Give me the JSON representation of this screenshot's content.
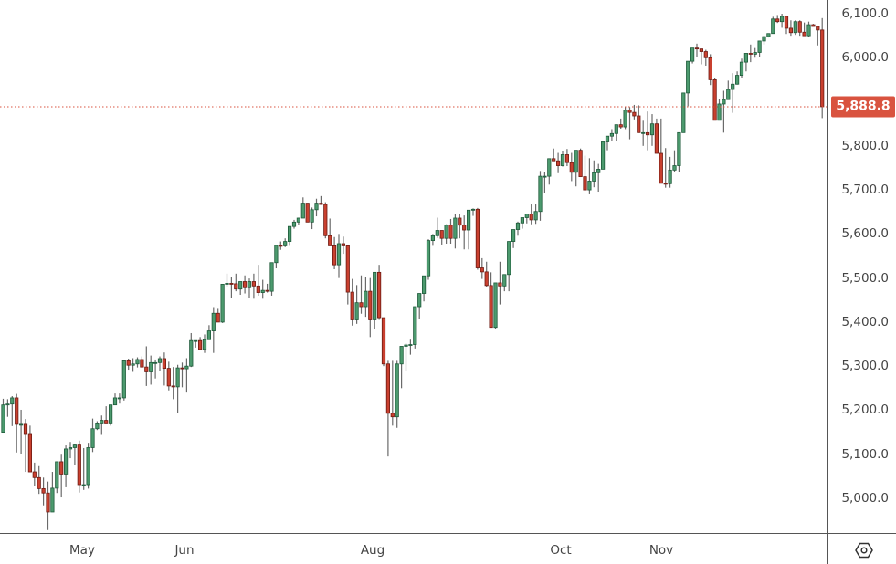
{
  "chart_data": {
    "type": "candlestick",
    "title": "",
    "xlabel": "",
    "ylabel": "",
    "ylim": [
      4925,
      6130
    ],
    "grid": false,
    "legend": "none",
    "last_price": 5888.8,
    "last_price_label": "5,888.8",
    "y_ticks": [
      {
        "value": 6100,
        "label": "6,100.0"
      },
      {
        "value": 6000,
        "label": "6,000.0"
      },
      {
        "value": 5800,
        "label": "5,800.0"
      },
      {
        "value": 5700,
        "label": "5,700.0"
      },
      {
        "value": 5600,
        "label": "5,600.0"
      },
      {
        "value": 5500,
        "label": "5,500.0"
      },
      {
        "value": 5400,
        "label": "5,400.0"
      },
      {
        "value": 5300,
        "label": "5,300.0"
      },
      {
        "value": 5200,
        "label": "5,200.0"
      },
      {
        "value": 5100,
        "label": "5,100.0"
      },
      {
        "value": 5000,
        "label": "5,000.0"
      }
    ],
    "x_ticks": [
      {
        "label": "May",
        "x": 90
      },
      {
        "label": "Jun",
        "x": 202
      },
      {
        "label": "Aug",
        "x": 408
      },
      {
        "label": "Oct",
        "x": 614
      },
      {
        "label": "Nov",
        "x": 724
      }
    ],
    "colors": {
      "up_fill": "#4c9a6e",
      "up_border": "#1e5a3a",
      "down_fill": "#c9402f",
      "down_border": "#6e1a12",
      "wick": "#6a6a6a",
      "last_price_line": "#d9533f",
      "badge": "#d9533f"
    },
    "candle_x0": 3.5,
    "candle_step": 4.9,
    "candles": [
      [
        5150,
        5226,
        5148,
        5212
      ],
      [
        5212,
        5225,
        5185,
        5214
      ],
      [
        5214,
        5232,
        5164,
        5228
      ],
      [
        5228,
        5237,
        5104,
        5168
      ],
      [
        5168,
        5201,
        5100,
        5168
      ],
      [
        5168,
        5180,
        5060,
        5145
      ],
      [
        5145,
        5165,
        5072,
        5060
      ],
      [
        5060,
        5081,
        5028,
        5047
      ],
      [
        5047,
        5073,
        5010,
        5022
      ],
      [
        5022,
        5047,
        4984,
        5012
      ],
      [
        5012,
        5038,
        4928,
        4969
      ],
      [
        4969,
        5060,
        4969,
        5023
      ],
      [
        5023,
        5078,
        5012,
        5083
      ],
      [
        5083,
        5099,
        5002,
        5055
      ],
      [
        5055,
        5120,
        5025,
        5112
      ],
      [
        5112,
        5128,
        5091,
        5115
      ],
      [
        5115,
        5123,
        5076,
        5121
      ],
      [
        5121,
        5131,
        5013,
        5031
      ],
      [
        5031,
        5114,
        5019,
        5031
      ],
      [
        5031,
        5126,
        5022,
        5115
      ],
      [
        5115,
        5181,
        5105,
        5158
      ],
      [
        5158,
        5175,
        5155,
        5169
      ],
      [
        5169,
        5188,
        5144,
        5177
      ],
      [
        5177,
        5209,
        5182,
        5169
      ],
      [
        5169,
        5202,
        5165,
        5212
      ],
      [
        5212,
        5238,
        5212,
        5228
      ],
      [
        5228,
        5238,
        5215,
        5228
      ],
      [
        5228,
        5250,
        5222,
        5312
      ],
      [
        5312,
        5317,
        5292,
        5302
      ],
      [
        5302,
        5318,
        5287,
        5305
      ],
      [
        5305,
        5320,
        5297,
        5315
      ],
      [
        5315,
        5322,
        5297,
        5298
      ],
      [
        5298,
        5345,
        5255,
        5287
      ],
      [
        5287,
        5324,
        5258,
        5308
      ],
      [
        5308,
        5315,
        5272,
        5308
      ],
      [
        5308,
        5322,
        5290,
        5317
      ],
      [
        5317,
        5331,
        5256,
        5295
      ],
      [
        5295,
        5310,
        5245,
        5255
      ],
      [
        5255,
        5298,
        5225,
        5253
      ],
      [
        5253,
        5303,
        5193,
        5296
      ],
      [
        5296,
        5308,
        5252,
        5294
      ],
      [
        5294,
        5318,
        5240,
        5300
      ],
      [
        5300,
        5375,
        5298,
        5358
      ],
      [
        5358,
        5356,
        5342,
        5358
      ],
      [
        5358,
        5366,
        5347,
        5338
      ],
      [
        5338,
        5372,
        5330,
        5360
      ],
      [
        5360,
        5393,
        5367,
        5380
      ],
      [
        5380,
        5434,
        5330,
        5420
      ],
      [
        5420,
        5430,
        5400,
        5400
      ],
      [
        5400,
        5445,
        5398,
        5486
      ],
      [
        5486,
        5510,
        5480,
        5488
      ],
      [
        5488,
        5502,
        5455,
        5487
      ],
      [
        5487,
        5510,
        5470,
        5475
      ],
      [
        5475,
        5488,
        5462,
        5492
      ],
      [
        5492,
        5506,
        5465,
        5478
      ],
      [
        5478,
        5499,
        5455,
        5492
      ],
      [
        5492,
        5510,
        5453,
        5482
      ],
      [
        5482,
        5530,
        5460,
        5467
      ],
      [
        5467,
        5496,
        5453,
        5472
      ],
      [
        5472,
        5487,
        5467,
        5470
      ],
      [
        5470,
        5531,
        5460,
        5535
      ],
      [
        5535,
        5545,
        5522,
        5574
      ],
      [
        5574,
        5583,
        5564,
        5573
      ],
      [
        5573,
        5590,
        5570,
        5583
      ],
      [
        5583,
        5598,
        5573,
        5617
      ],
      [
        5617,
        5632,
        5612,
        5627
      ],
      [
        5627,
        5637,
        5620,
        5636
      ],
      [
        5636,
        5683,
        5638,
        5670
      ],
      [
        5670,
        5667,
        5649,
        5627
      ],
      [
        5627,
        5660,
        5611,
        5655
      ],
      [
        5655,
        5680,
        5640,
        5670
      ],
      [
        5670,
        5686,
        5666,
        5667
      ],
      [
        5667,
        5672,
        5590,
        5596
      ],
      [
        5596,
        5635,
        5573,
        5573
      ],
      [
        5573,
        5593,
        5520,
        5530
      ],
      [
        5530,
        5600,
        5500,
        5578
      ],
      [
        5578,
        5594,
        5555,
        5573
      ],
      [
        5573,
        5566,
        5440,
        5468
      ],
      [
        5468,
        5498,
        5392,
        5405
      ],
      [
        5405,
        5484,
        5396,
        5444
      ],
      [
        5444,
        5506,
        5419,
        5435
      ],
      [
        5435,
        5502,
        5412,
        5470
      ],
      [
        5470,
        5500,
        5366,
        5405
      ],
      [
        5405,
        5458,
        5385,
        5513
      ],
      [
        5513,
        5530,
        5405,
        5410
      ],
      [
        5410,
        5410,
        5300,
        5305
      ],
      [
        5305,
        5312,
        5095,
        5193
      ],
      [
        5193,
        5312,
        5165,
        5185
      ],
      [
        5185,
        5312,
        5160,
        5305
      ],
      [
        5305,
        5305,
        5250,
        5345
      ],
      [
        5345,
        5352,
        5290,
        5348
      ],
      [
        5348,
        5360,
        5326,
        5349
      ],
      [
        5349,
        5435,
        5340,
        5435
      ],
      [
        5435,
        5446,
        5408,
        5465
      ],
      [
        5465,
        5480,
        5447,
        5505
      ],
      [
        5505,
        5588,
        5496,
        5585
      ],
      [
        5585,
        5600,
        5573,
        5596
      ],
      [
        5596,
        5637,
        5591,
        5608
      ],
      [
        5608,
        5606,
        5576,
        5590
      ],
      [
        5590,
        5622,
        5578,
        5620
      ],
      [
        5620,
        5634,
        5578,
        5590
      ],
      [
        5590,
        5645,
        5567,
        5636
      ],
      [
        5636,
        5645,
        5590,
        5620
      ],
      [
        5620,
        5642,
        5565,
        5609
      ],
      [
        5609,
        5650,
        5565,
        5654
      ],
      [
        5654,
        5658,
        5641,
        5656
      ],
      [
        5656,
        5659,
        5519,
        5523
      ],
      [
        5523,
        5545,
        5498,
        5514
      ],
      [
        5514,
        5537,
        5480,
        5483
      ],
      [
        5483,
        5513,
        5415,
        5388
      ],
      [
        5388,
        5400,
        5385,
        5489
      ],
      [
        5489,
        5537,
        5440,
        5482
      ],
      [
        5482,
        5500,
        5470,
        5508
      ],
      [
        5508,
        5552,
        5470,
        5583
      ],
      [
        5583,
        5594,
        5568,
        5610
      ],
      [
        5610,
        5628,
        5596,
        5625
      ],
      [
        5625,
        5637,
        5612,
        5637
      ],
      [
        5637,
        5637,
        5624,
        5645
      ],
      [
        5645,
        5667,
        5622,
        5632
      ],
      [
        5632,
        5667,
        5623,
        5651
      ],
      [
        5651,
        5743,
        5630,
        5731
      ],
      [
        5731,
        5741,
        5693,
        5731
      ],
      [
        5731,
        5755,
        5712,
        5771
      ],
      [
        5771,
        5794,
        5767,
        5766
      ],
      [
        5766,
        5784,
        5738,
        5755
      ],
      [
        5755,
        5789,
        5753,
        5780
      ],
      [
        5780,
        5793,
        5754,
        5762
      ],
      [
        5762,
        5784,
        5720,
        5740
      ],
      [
        5740,
        5788,
        5708,
        5790
      ],
      [
        5790,
        5794,
        5750,
        5730
      ],
      [
        5730,
        5778,
        5708,
        5700
      ],
      [
        5700,
        5772,
        5690,
        5720
      ],
      [
        5720,
        5767,
        5706,
        5739
      ],
      [
        5739,
        5759,
        5696,
        5747
      ],
      [
        5747,
        5765,
        5752,
        5809
      ],
      [
        5809,
        5819,
        5790,
        5822
      ],
      [
        5822,
        5838,
        5810,
        5828
      ],
      [
        5828,
        5838,
        5811,
        5848
      ],
      [
        5848,
        5862,
        5839,
        5843
      ],
      [
        5843,
        5888,
        5838,
        5881
      ],
      [
        5881,
        5888,
        5815,
        5876
      ],
      [
        5876,
        5893,
        5860,
        5868
      ],
      [
        5868,
        5892,
        5830,
        5830
      ],
      [
        5830,
        5857,
        5800,
        5830
      ],
      [
        5830,
        5878,
        5790,
        5825
      ],
      [
        5825,
        5872,
        5800,
        5850
      ],
      [
        5850,
        5862,
        5793,
        5783
      ],
      [
        5783,
        5862,
        5785,
        5715
      ],
      [
        5715,
        5795,
        5705,
        5714
      ],
      [
        5714,
        5775,
        5705,
        5745
      ],
      [
        5745,
        5790,
        5740,
        5755
      ],
      [
        5755,
        5797,
        5740,
        5830
      ],
      [
        5830,
        5830,
        5830,
        5920
      ],
      [
        5920,
        5925,
        5890,
        5992
      ],
      [
        5992,
        6015,
        5987,
        6022
      ],
      [
        6022,
        6032,
        6002,
        6020
      ],
      [
        6020,
        6016,
        5985,
        6014
      ],
      [
        6014,
        6018,
        5982,
        6000
      ],
      [
        6000,
        6008,
        5938,
        5950
      ],
      [
        5950,
        5954,
        5888,
        5858
      ],
      [
        5858,
        5906,
        5880,
        5895
      ],
      [
        5895,
        5925,
        5830,
        5905
      ],
      [
        5905,
        5948,
        5905,
        5928
      ],
      [
        5928,
        5965,
        5875,
        5940
      ],
      [
        5940,
        5969,
        5939,
        5960
      ],
      [
        5960,
        5998,
        5955,
        5990
      ],
      [
        5990,
        6010,
        5969,
        6010
      ],
      [
        6010,
        6030,
        5990,
        6008
      ],
      [
        6008,
        6022,
        6000,
        6012
      ],
      [
        6012,
        6038,
        6001,
        6038
      ],
      [
        6038,
        6050,
        6030,
        6048
      ],
      [
        6048,
        6055,
        6046,
        6055
      ],
      [
        6055,
        6093,
        6057,
        6088
      ],
      [
        6088,
        6097,
        6079,
        6082
      ],
      [
        6082,
        6100,
        6068,
        6094
      ],
      [
        6094,
        6090,
        6054,
        6067
      ],
      [
        6067,
        6085,
        6050,
        6057
      ],
      [
        6057,
        6085,
        6052,
        6082
      ],
      [
        6082,
        6085,
        6050,
        6058
      ],
      [
        6058,
        6080,
        6050,
        6050
      ],
      [
        6050,
        6082,
        6048,
        6075
      ],
      [
        6075,
        6077,
        6072,
        6071
      ],
      [
        6071,
        6070,
        6028,
        6063
      ],
      [
        6063,
        6090,
        5863,
        5888.8
      ]
    ]
  },
  "price_axis": {
    "last_price_label": "5,888.8"
  },
  "time_axis": {
    "labels": [
      "May",
      "Jun",
      "Aug",
      "Oct",
      "Nov"
    ]
  },
  "controls": {
    "settings_icon": "hexagon-settings-icon"
  }
}
